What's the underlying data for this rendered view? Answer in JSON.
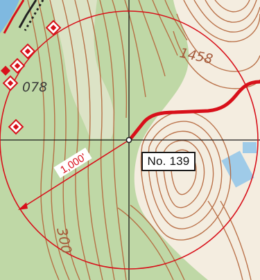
{
  "map": {
    "site_label": "No. 139",
    "radius_label": "1,000'",
    "contour_labels": {
      "top_right": "1458",
      "left": "078",
      "bottom_left": "300"
    },
    "colors": {
      "forest_green": "#bfd8a6",
      "clearing": "#f4ede0",
      "contour_brown": "#b4653a",
      "buffer_red": "#d8101a",
      "crosshair": "#1a1a1a",
      "water_blue": "#7fb9e0"
    },
    "feature_markers_count": 6
  }
}
